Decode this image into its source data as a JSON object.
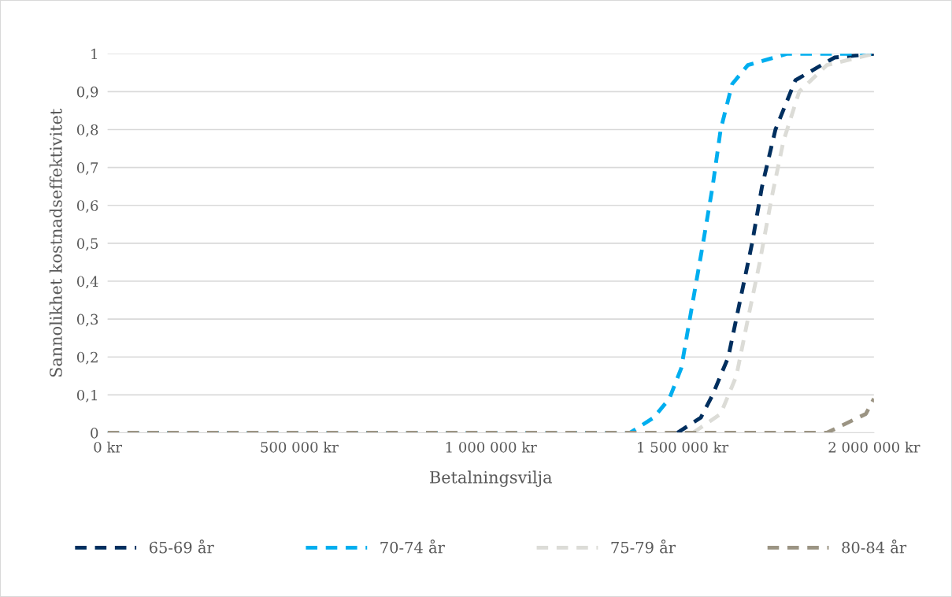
{
  "chart_data": {
    "type": "line",
    "xlabel": "Betalningsvilja",
    "ylabel": "Sannolikhet kostnadseffektivitet",
    "xlim": [
      0,
      2000000
    ],
    "ylim": [
      0,
      1
    ],
    "xticks": [
      {
        "value": 0,
        "label": "0 kr"
      },
      {
        "value": 500000,
        "label": "500 000 kr"
      },
      {
        "value": 1000000,
        "label": "1 000 000 kr"
      },
      {
        "value": 1500000,
        "label": "1 500 000 kr"
      },
      {
        "value": 2000000,
        "label": "2 000 000 kr"
      }
    ],
    "yticks": [
      0,
      {
        "value": 0.1,
        "label": "0,1"
      },
      {
        "value": 0.2,
        "label": "0,2"
      },
      {
        "value": 0.3,
        "label": "0,3"
      },
      {
        "value": 0.4,
        "label": "0,4"
      },
      {
        "value": 0.5,
        "label": "0,5"
      },
      {
        "value": 0.6,
        "label": "0,6"
      },
      {
        "value": 0.7,
        "label": "0,7"
      },
      {
        "value": 0.8,
        "label": "0,8"
      },
      {
        "value": 0.9,
        "label": "0,9"
      },
      1
    ],
    "grid": "y",
    "legend": "bottom",
    "line_style": "dashed",
    "marker": "none",
    "series": [
      {
        "name": "65-69 år",
        "color": "#002f5f",
        "x": [
          1487000,
          1548000,
          1579000,
          1620000,
          1651000,
          1682000,
          1708000,
          1743000,
          1795000,
          1897000,
          2000000
        ],
        "values": [
          0,
          0.04,
          0.1,
          0.2,
          0.35,
          0.5,
          0.65,
          0.8,
          0.93,
          0.99,
          1
        ]
      },
      {
        "name": "70-74 år",
        "color": "#00aeef",
        "x": [
          0,
          1363000,
          1425000,
          1466000,
          1497000,
          1528000,
          1554000,
          1579000,
          1600000,
          1630000,
          1671000,
          1774000,
          2000000
        ],
        "values": [
          0,
          0,
          0.04,
          0.09,
          0.17,
          0.35,
          0.5,
          0.65,
          0.8,
          0.92,
          0.97,
          1,
          1
        ]
      },
      {
        "name": "75-79 år",
        "color": "#dcdcd7",
        "x": [
          1528000,
          1600000,
          1641000,
          1671000,
          1702000,
          1733000,
          1764000,
          1805000,
          1877000,
          2000000
        ],
        "values": [
          0,
          0.05,
          0.15,
          0.3,
          0.45,
          0.62,
          0.77,
          0.9,
          0.97,
          1
        ]
      },
      {
        "name": "80-84 år",
        "color": "#9b9483",
        "x": [
          0,
          1877000,
          1918000,
          1979000,
          2000000
        ],
        "values": [
          0,
          0,
          0.02,
          0.05,
          0.09
        ]
      }
    ]
  }
}
